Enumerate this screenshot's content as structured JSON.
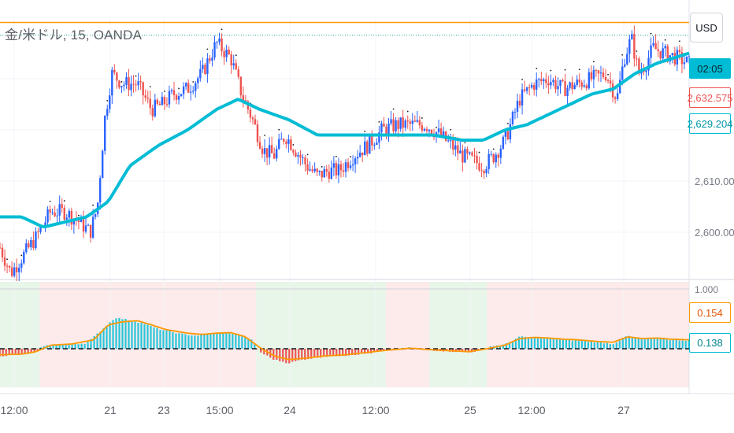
{
  "header": {
    "symbol_title": "金/米ドル, 15, OANDA"
  },
  "currency_button": {
    "label": "USD"
  },
  "price_scale": {
    "countdown": "02:05",
    "last_price": "2,632.575",
    "ma_value": "2,629.204",
    "ticks": [
      "2,610.000",
      "2,600.000"
    ]
  },
  "oscillator_scale": {
    "top_tick": "1.000",
    "value_orange": "0.154",
    "value_cyan": "0.138"
  },
  "time_axis": {
    "labels": [
      "12:00",
      "21",
      "23",
      "15:00",
      "24",
      "12:00",
      "25",
      "12:00",
      "27"
    ]
  },
  "colors": {
    "up_candle": "#2962ff",
    "down_candle": "#ef5350",
    "moving_average": "#00bcd4",
    "resistance_line": "#ff9800",
    "osc_positive": "#26c6da",
    "osc_negative": "#ef5350",
    "osc_signal": "#ff9800",
    "bg_green": "#e8f5e9",
    "bg_red": "#fdeaea"
  },
  "chart_data": [
    {
      "type": "candlestick",
      "symbol": "金/米ドル",
      "interval": "15",
      "source": "OANDA",
      "currency": "USD",
      "y_ticks": [
        2600,
        2610
      ],
      "last_price": 2632.575,
      "moving_average_last": 2629.204,
      "horizontal_line": 2641,
      "x_labels": [
        "12:00",
        "21",
        "23",
        "15:00",
        "24",
        "12:00",
        "25",
        "12:00",
        "27"
      ],
      "close_path": [
        [
          0,
          2597
        ],
        [
          1.5,
          2592
        ],
        [
          3,
          2595
        ],
        [
          5,
          2599
        ],
        [
          7,
          2604
        ],
        [
          9,
          2604
        ],
        [
          11,
          2602
        ],
        [
          12.5,
          2600
        ],
        [
          13.5,
          2605
        ],
        [
          14.5,
          2622
        ],
        [
          15.5,
          2631
        ],
        [
          17,
          2629
        ],
        [
          19,
          2629
        ],
        [
          21,
          2624
        ],
        [
          22.5,
          2625
        ],
        [
          24,
          2627
        ],
        [
          26,
          2628
        ],
        [
          28,
          2631
        ],
        [
          30,
          2637
        ],
        [
          32,
          2634
        ],
        [
          33.5,
          2627
        ],
        [
          35,
          2622
        ],
        [
          36.5,
          2616
        ],
        [
          38,
          2615
        ],
        [
          39.5,
          2619
        ],
        [
          41,
          2616
        ],
        [
          42.5,
          2613
        ],
        [
          44,
          2611
        ],
        [
          45.5,
          2612
        ],
        [
          47,
          2612
        ],
        [
          49,
          2615
        ],
        [
          51,
          2617
        ],
        [
          53,
          2620
        ],
        [
          55,
          2621
        ],
        [
          57,
          2621
        ],
        [
          59,
          2621
        ],
        [
          61,
          2619
        ],
        [
          62.5,
          2617
        ],
        [
          64,
          2615
        ],
        [
          65.5,
          2614
        ],
        [
          67,
          2613
        ],
        [
          68.5,
          2615
        ],
        [
          70,
          2618
        ],
        [
          72,
          2626
        ],
        [
          74,
          2629
        ],
        [
          76,
          2630
        ],
        [
          78,
          2628
        ],
        [
          80,
          2629
        ],
        [
          82,
          2630
        ],
        [
          84,
          2631
        ],
        [
          85.5,
          2626
        ],
        [
          86.5,
          2634
        ],
        [
          87.5,
          2638
        ],
        [
          88.5,
          2631
        ],
        [
          89.5,
          2633
        ],
        [
          90.5,
          2636
        ],
        [
          92,
          2635
        ],
        [
          94,
          2634
        ],
        [
          95.5,
          2633
        ]
      ],
      "moving_average": [
        [
          0,
          2603
        ],
        [
          3,
          2603
        ],
        [
          6,
          2601
        ],
        [
          9,
          2602
        ],
        [
          12,
          2603
        ],
        [
          15,
          2606
        ],
        [
          18,
          2613
        ],
        [
          22,
          2617
        ],
        [
          26,
          2620
        ],
        [
          30,
          2624
        ],
        [
          33,
          2626
        ],
        [
          36,
          2624
        ],
        [
          40,
          2622
        ],
        [
          44,
          2619
        ],
        [
          48,
          2619
        ],
        [
          52,
          2619
        ],
        [
          56,
          2619
        ],
        [
          60,
          2619
        ],
        [
          64,
          2618
        ],
        [
          67,
          2618
        ],
        [
          70,
          2620
        ],
        [
          73,
          2621
        ],
        [
          76,
          2623
        ],
        [
          79,
          2625
        ],
        [
          82,
          2627
        ],
        [
          85,
          2628
        ],
        [
          88,
          2631
        ],
        [
          91,
          2633
        ],
        [
          95.5,
          2635
        ]
      ]
    },
    {
      "type": "area",
      "name": "oscillator",
      "y_ticks": [
        1.0
      ],
      "last_values": [
        0.154,
        0.138
      ],
      "colors": [
        "#26c6da",
        "#ff9800"
      ],
      "regime_bands": [
        {
          "from": 0,
          "to": 5.5,
          "state": "green"
        },
        {
          "from": 5.5,
          "to": 35.5,
          "state": "red"
        },
        {
          "from": 35.5,
          "to": 53.5,
          "state": "green"
        },
        {
          "from": 53.5,
          "to": 59.5,
          "state": "red"
        },
        {
          "from": 59.5,
          "to": 67.5,
          "state": "green"
        },
        {
          "from": 67.5,
          "to": 95.5,
          "state": "red"
        }
      ],
      "histogram": [
        [
          0,
          -0.12
        ],
        [
          3,
          -0.1
        ],
        [
          5,
          -0.06
        ],
        [
          6,
          0.05
        ],
        [
          8,
          0.07
        ],
        [
          12,
          0.09
        ],
        [
          14,
          0.3
        ],
        [
          16,
          0.52
        ],
        [
          18,
          0.48
        ],
        [
          20,
          0.42
        ],
        [
          22,
          0.33
        ],
        [
          25,
          0.25
        ],
        [
          27,
          0.22
        ],
        [
          29,
          0.24
        ],
        [
          31,
          0.28
        ],
        [
          33,
          0.24
        ],
        [
          35,
          0.14
        ],
        [
          36,
          -0.05
        ],
        [
          38,
          -0.18
        ],
        [
          40,
          -0.24
        ],
        [
          42,
          -0.18
        ],
        [
          45,
          -0.13
        ],
        [
          48,
          -0.11
        ],
        [
          51,
          -0.08
        ],
        [
          54,
          -0.02
        ],
        [
          57,
          0.02
        ],
        [
          59,
          -0.02
        ],
        [
          62,
          -0.04
        ],
        [
          65,
          -0.06
        ],
        [
          66,
          -0.04
        ],
        [
          68,
          0.04
        ],
        [
          70,
          0.07
        ],
        [
          72,
          0.2
        ],
        [
          74,
          0.19
        ],
        [
          76,
          0.18
        ],
        [
          78,
          0.15
        ],
        [
          80,
          0.14
        ],
        [
          83,
          0.11
        ],
        [
          85,
          0.08
        ],
        [
          87,
          0.22
        ],
        [
          89,
          0.15
        ],
        [
          91,
          0.18
        ],
        [
          93,
          0.15
        ],
        [
          95.5,
          0.14
        ]
      ],
      "signal": [
        [
          0,
          -0.1
        ],
        [
          3,
          -0.09
        ],
        [
          5,
          -0.05
        ],
        [
          7,
          0.06
        ],
        [
          10,
          0.08
        ],
        [
          13,
          0.15
        ],
        [
          15,
          0.4
        ],
        [
          17,
          0.45
        ],
        [
          19,
          0.47
        ],
        [
          21,
          0.4
        ],
        [
          23,
          0.32
        ],
        [
          26,
          0.26
        ],
        [
          28,
          0.24
        ],
        [
          30,
          0.26
        ],
        [
          32,
          0.27
        ],
        [
          34,
          0.2
        ],
        [
          36,
          0.02
        ],
        [
          38,
          -0.12
        ],
        [
          40,
          -0.18
        ],
        [
          42,
          -0.16
        ],
        [
          45,
          -0.12
        ],
        [
          48,
          -0.1
        ],
        [
          51,
          -0.06
        ],
        [
          54,
          -0.02
        ],
        [
          57,
          0.01
        ],
        [
          59,
          -0.01
        ],
        [
          62,
          -0.03
        ],
        [
          65,
          -0.05
        ],
        [
          67,
          -0.01
        ],
        [
          70,
          0.06
        ],
        [
          72,
          0.17
        ],
        [
          74,
          0.19
        ],
        [
          76,
          0.18
        ],
        [
          78,
          0.16
        ],
        [
          80,
          0.15
        ],
        [
          83,
          0.12
        ],
        [
          85,
          0.11
        ],
        [
          87,
          0.2
        ],
        [
          89,
          0.17
        ],
        [
          91,
          0.18
        ],
        [
          93,
          0.16
        ],
        [
          95.5,
          0.15
        ]
      ]
    }
  ]
}
